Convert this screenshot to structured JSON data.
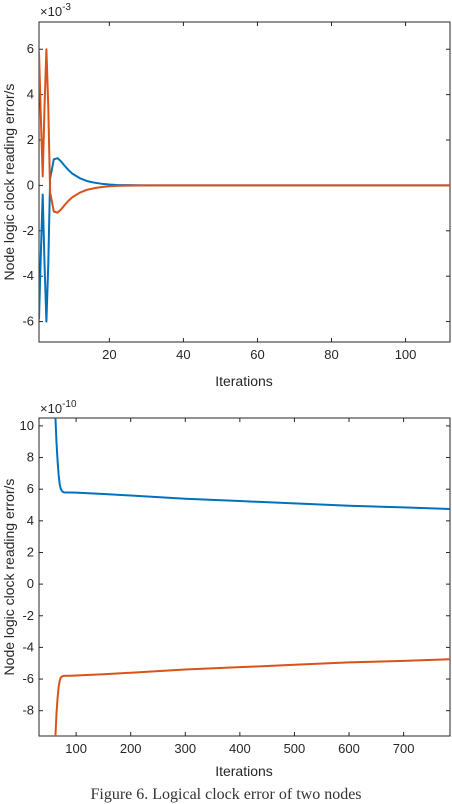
{
  "chart_data": [
    {
      "type": "line",
      "xlabel": "Iterations",
      "ylabel": "Node logic clock reading error/s",
      "exponent_base": "×10",
      "exponent_power": "-3",
      "xlim": [
        1,
        112
      ],
      "ylim": [
        -6.9,
        7.2
      ],
      "xticks": [
        20,
        40,
        60,
        80,
        100
      ],
      "yticks": [
        -6,
        -4,
        -2,
        0,
        2,
        4,
        6
      ],
      "series": [
        {
          "color": "#0072BD",
          "x": [
            1,
            1.5,
            2,
            2.5,
            3,
            3.5,
            4,
            5,
            6,
            7,
            8,
            9,
            10,
            12,
            14,
            16,
            18,
            20,
            22,
            25,
            30,
            40,
            60,
            80,
            112
          ],
          "y": [
            -5.9,
            -3.0,
            -0.4,
            -3.5,
            -6.0,
            -3.5,
            0.3,
            1.15,
            1.2,
            1.05,
            0.85,
            0.67,
            0.52,
            0.32,
            0.19,
            0.12,
            0.07,
            0.04,
            0.02,
            0.01,
            0.0,
            0.0,
            0.0,
            0.0,
            0.0
          ]
        },
        {
          "color": "#D95319",
          "x": [
            1,
            1.5,
            2,
            2.5,
            3,
            3.5,
            4,
            5,
            6,
            7,
            8,
            9,
            10,
            12,
            14,
            16,
            18,
            20,
            22,
            25,
            30,
            40,
            60,
            80,
            112
          ],
          "y": [
            5.9,
            3.0,
            0.4,
            3.5,
            6.0,
            3.5,
            -0.3,
            -1.15,
            -1.2,
            -1.05,
            -0.85,
            -0.67,
            -0.52,
            -0.32,
            -0.19,
            -0.12,
            -0.07,
            -0.04,
            -0.02,
            -0.01,
            0.0,
            0.0,
            0.0,
            0.0,
            0.0
          ]
        }
      ]
    },
    {
      "type": "line",
      "xlabel": "Iterations",
      "ylabel": "Node logic clock reading error/s",
      "exponent_base": "×10",
      "exponent_power": "-10",
      "xlim": [
        32,
        785
      ],
      "ylim": [
        -9.6,
        10.5
      ],
      "xticks": [
        100,
        200,
        300,
        400,
        500,
        600,
        700
      ],
      "yticks": [
        -8,
        -6,
        -4,
        -2,
        0,
        2,
        4,
        6,
        8,
        10
      ],
      "series": [
        {
          "color": "#0072BD",
          "x": [
            62,
            64,
            66,
            68,
            70,
            72,
            75,
            78,
            82,
            90,
            100,
            150,
            200,
            300,
            400,
            500,
            600,
            700,
            785
          ],
          "y": [
            10.6,
            9.0,
            7.8,
            6.9,
            6.3,
            6.0,
            5.85,
            5.8,
            5.79,
            5.79,
            5.78,
            5.7,
            5.6,
            5.4,
            5.25,
            5.1,
            4.95,
            4.85,
            4.75
          ]
        },
        {
          "color": "#D95319",
          "x": [
            62,
            64,
            66,
            68,
            70,
            72,
            75,
            78,
            82,
            90,
            100,
            150,
            200,
            300,
            400,
            500,
            600,
            700,
            785
          ],
          "y": [
            -9.7,
            -8.2,
            -7.2,
            -6.5,
            -6.1,
            -5.9,
            -5.82,
            -5.8,
            -5.79,
            -5.79,
            -5.78,
            -5.7,
            -5.6,
            -5.4,
            -5.25,
            -5.1,
            -4.95,
            -4.85,
            -4.75
          ]
        }
      ]
    }
  ],
  "caption": "Figure 6. Logical clock error of two nodes"
}
